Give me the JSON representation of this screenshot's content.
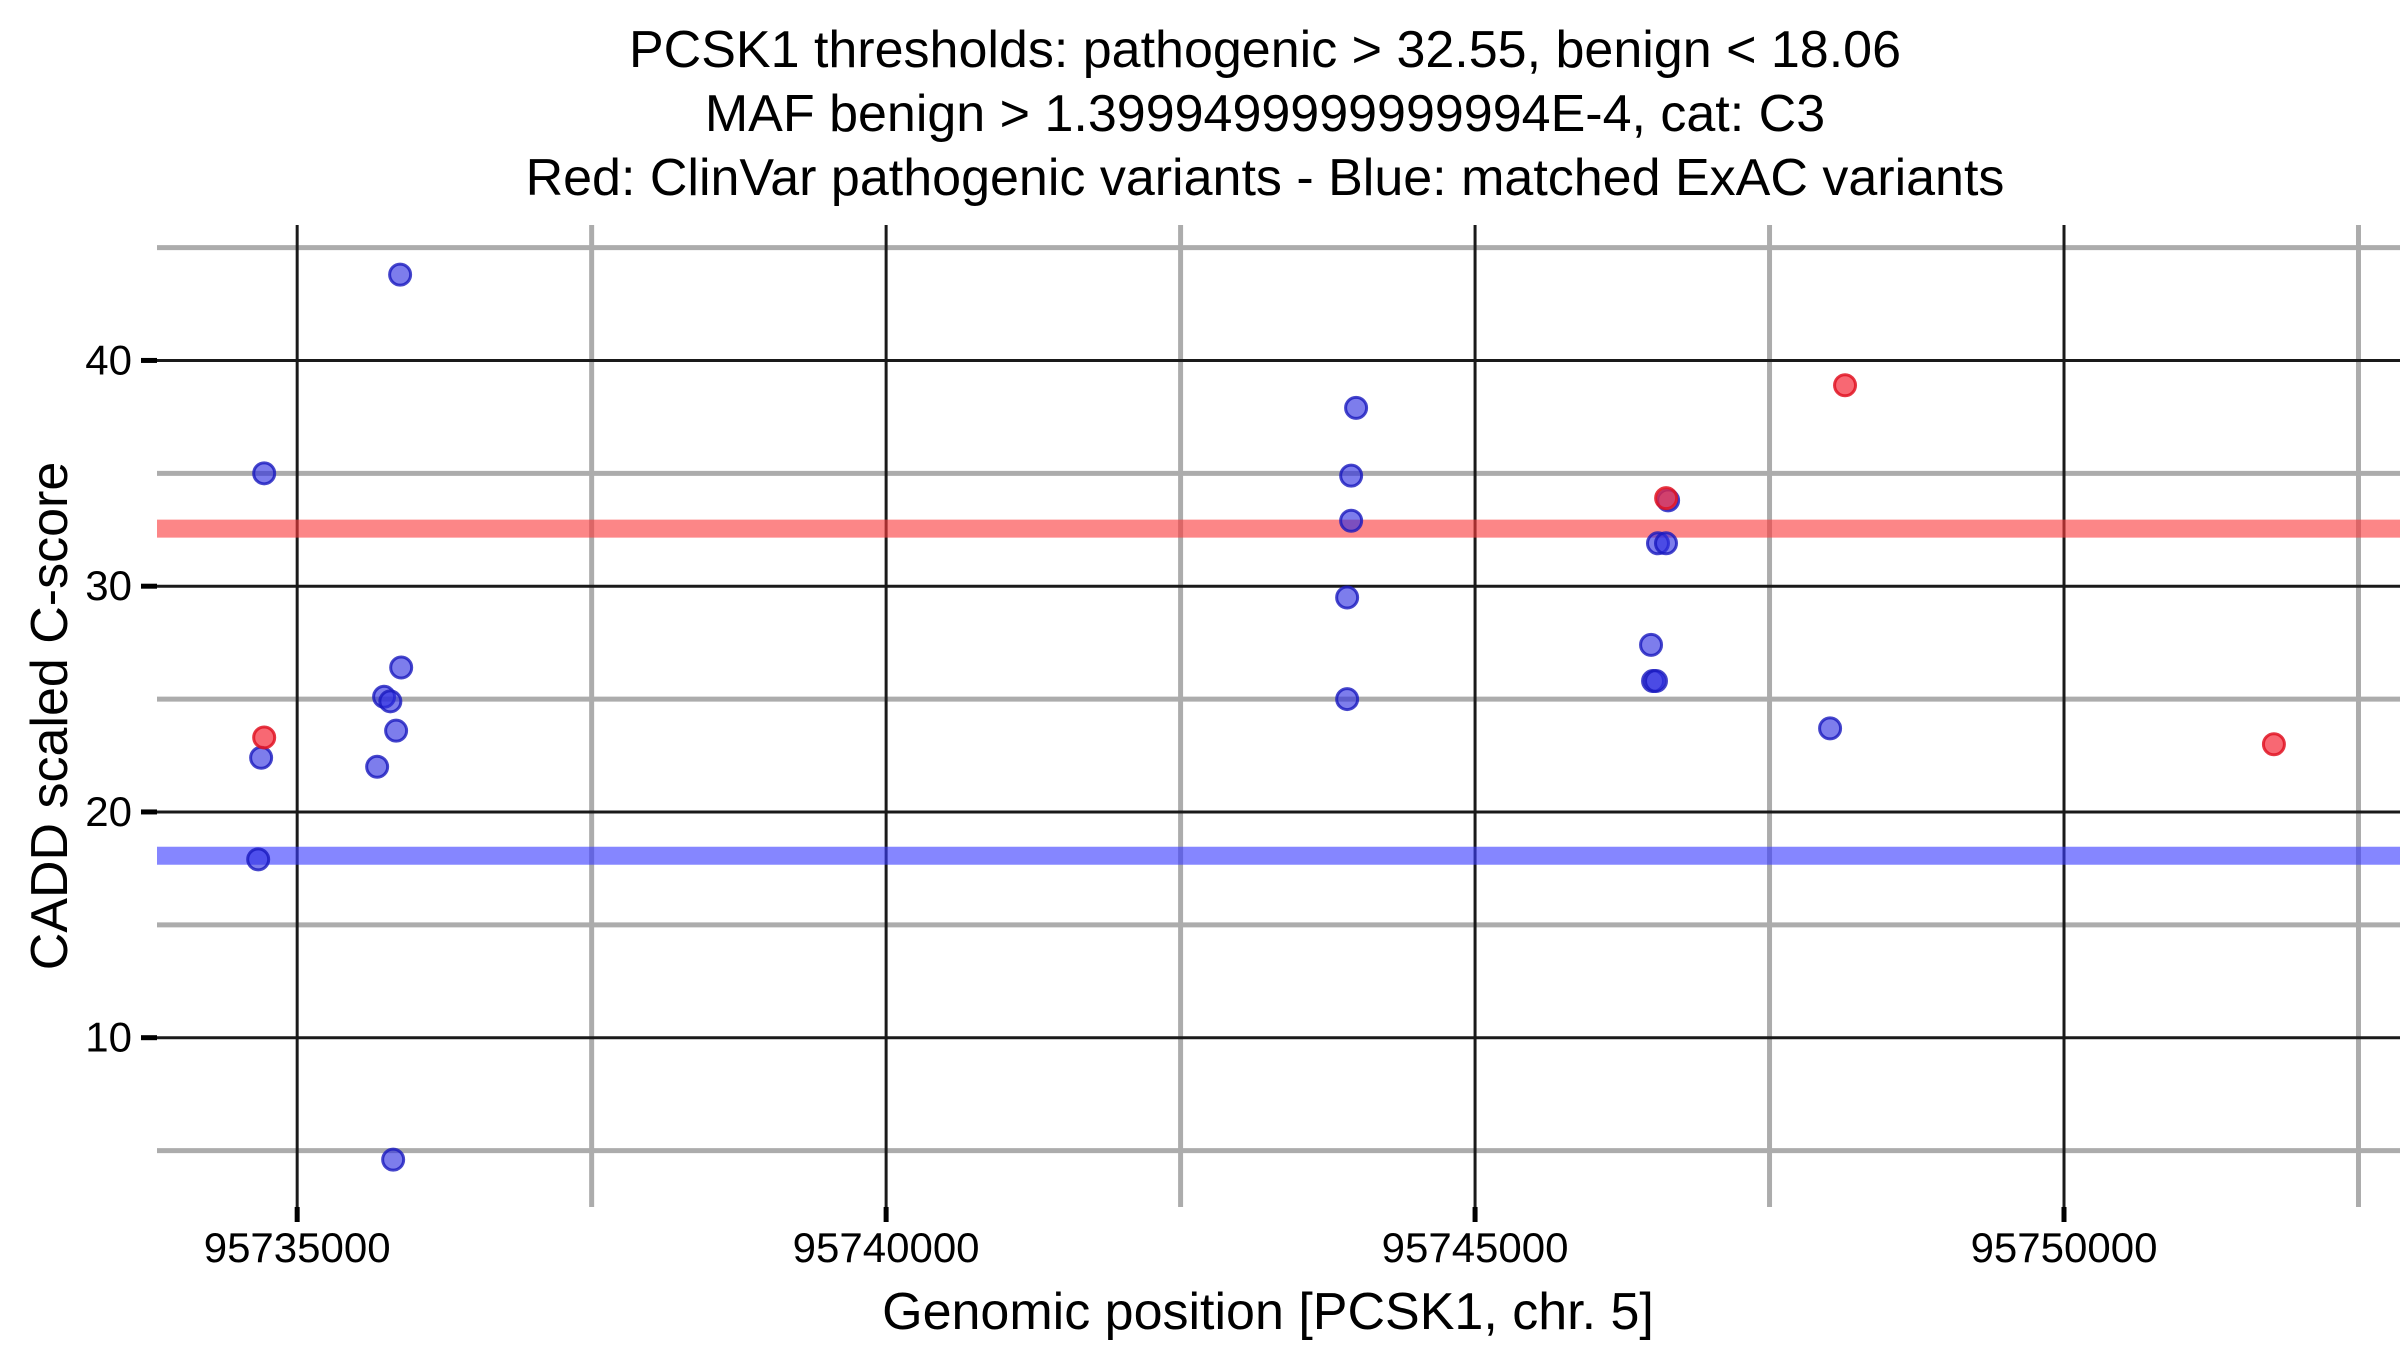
{
  "chart_data": {
    "type": "scatter",
    "title_lines": [
      "PCSK1 thresholds: pathogenic > 32.55, benign < 18.06",
      "MAF benign > 1.3999499999999994E-4, cat: C3",
      "Red: ClinVar pathogenic variants - Blue: matched ExAC variants"
    ],
    "xlabel": "Genomic position [PCSK1, chr. 5]",
    "ylabel": "CADD scaled C-score",
    "xlim": [
      95733810,
      95752810
    ],
    "ylim": [
      2.5,
      46
    ],
    "x_ticks": [
      95735000,
      95740000,
      95745000,
      95750000
    ],
    "y_ticks": [
      10,
      20,
      30,
      40
    ],
    "x_minor_gridlines": [
      95737500,
      95742500,
      95747500,
      95752500
    ],
    "y_minor_gridlines": [
      5,
      15,
      25,
      35,
      45
    ],
    "grid_on": true,
    "legend_position": "none",
    "thresholds": {
      "pathogenic_gt": 32.55,
      "benign_lt": 18.06,
      "maf_benign_gt": "1.3999499999999994E-4",
      "category": "C3"
    },
    "bands": [
      {
        "y": 32.55,
        "label": "pathogenic-threshold-band",
        "color": "rgba(250,60,62,0.62)"
      },
      {
        "y": 18.06,
        "label": "benign-threshold-band",
        "color": "rgba(58,60,255,0.62)"
      }
    ],
    "series": [
      {
        "name": "ClinVar pathogenic variants",
        "color": "#e8232f",
        "fill": "rgba(245,40,55,0.7)",
        "stroke": "rgba(225,20,35,0.85)",
        "points": [
          [
            95734720,
            23.3
          ],
          [
            95746622,
            33.9
          ],
          [
            95748141,
            38.9
          ],
          [
            95751782,
            23.0
          ]
        ]
      },
      {
        "name": "matched ExAC variants",
        "color": "#3a3ce0",
        "fill": "rgba(45,45,225,0.62)",
        "stroke": "rgba(25,25,190,0.8)",
        "points": [
          [
            95734669,
            17.9
          ],
          [
            95734694,
            22.4
          ],
          [
            95734720,
            35.0
          ],
          [
            95735679,
            22.0
          ],
          [
            95735738,
            25.1
          ],
          [
            95735791,
            24.9
          ],
          [
            95735815,
            4.6
          ],
          [
            95735840,
            23.6
          ],
          [
            95735874,
            43.8
          ],
          [
            95735883,
            26.4
          ],
          [
            95743914,
            25.0
          ],
          [
            95743914,
            29.5
          ],
          [
            95743948,
            32.9
          ],
          [
            95743948,
            34.9
          ],
          [
            95743990,
            37.9
          ],
          [
            95746494,
            27.4
          ],
          [
            95746511,
            25.8
          ],
          [
            95746536,
            25.8
          ],
          [
            95746553,
            31.9
          ],
          [
            95746621,
            31.9
          ],
          [
            95746639,
            33.8
          ],
          [
            95748014,
            23.7
          ]
        ]
      }
    ],
    "colors": {
      "grid_major": "#1a1a1a",
      "grid_minor": "#acacac",
      "tick_mark": "#000000",
      "background": "#ffffff"
    }
  }
}
